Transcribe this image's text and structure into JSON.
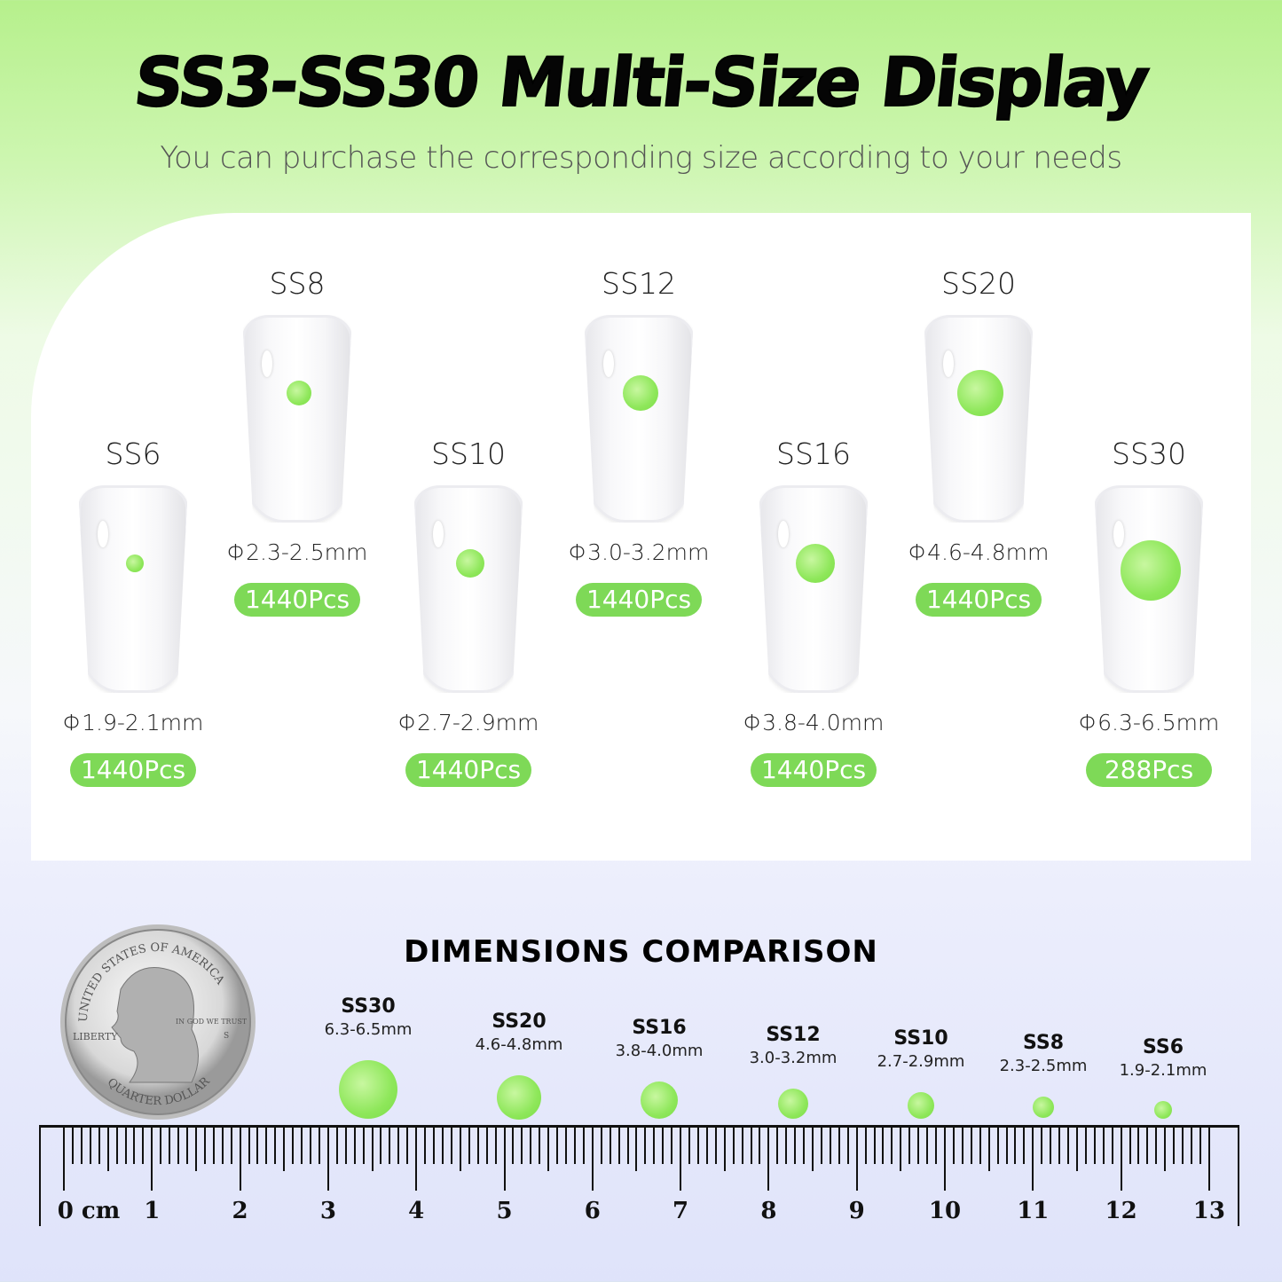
{
  "header": {
    "title": "SS3-SS30 Multi-Size Display",
    "subtitle": "You can purchase the corresponding size according to your needs"
  },
  "sizes": [
    {
      "name": "SS6",
      "diameter": "Φ1.9-2.1mm",
      "count": "1440Pcs"
    },
    {
      "name": "SS8",
      "diameter": "Φ2.3-2.5mm",
      "count": "1440Pcs"
    },
    {
      "name": "SS10",
      "diameter": "Φ2.7-2.9mm",
      "count": "1440Pcs"
    },
    {
      "name": "SS12",
      "diameter": "Φ3.0-3.2mm",
      "count": "1440Pcs"
    },
    {
      "name": "SS16",
      "diameter": "Φ3.8-4.0mm",
      "count": "1440Pcs"
    },
    {
      "name": "SS20",
      "diameter": "Φ4.6-4.8mm",
      "count": "1440Pcs"
    },
    {
      "name": "SS30",
      "diameter": "Φ6.3-6.5mm",
      "count": "288Pcs"
    }
  ],
  "comparison": {
    "title": "DIMENSIONS COMPARISON",
    "items": [
      {
        "name": "SS30",
        "range": "6.3-6.5mm"
      },
      {
        "name": "SS20",
        "range": "4.6-4.8mm"
      },
      {
        "name": "SS16",
        "range": "3.8-4.0mm"
      },
      {
        "name": "SS12",
        "range": "3.0-3.2mm"
      },
      {
        "name": "SS10",
        "range": "2.7-2.9mm"
      },
      {
        "name": "SS8",
        "range": "2.3-2.5mm"
      },
      {
        "name": "SS6",
        "range": "1.9-2.1mm"
      }
    ],
    "coin": {
      "top": "UNITED STATES OF AMERICA",
      "motto": "IN GOD WE TRUST",
      "left": "LIBERTY",
      "bottom": "QUARTER DOLLAR",
      "mint": "S"
    },
    "ruler": {
      "unit": "cm",
      "labels": [
        "0 cm",
        "1",
        "2",
        "3",
        "4",
        "5",
        "6",
        "7",
        "8",
        "9",
        "10",
        "11",
        "12",
        "13"
      ]
    }
  },
  "colors": {
    "accent_green": "#7ed957",
    "gem_green": "#8ee75a"
  }
}
